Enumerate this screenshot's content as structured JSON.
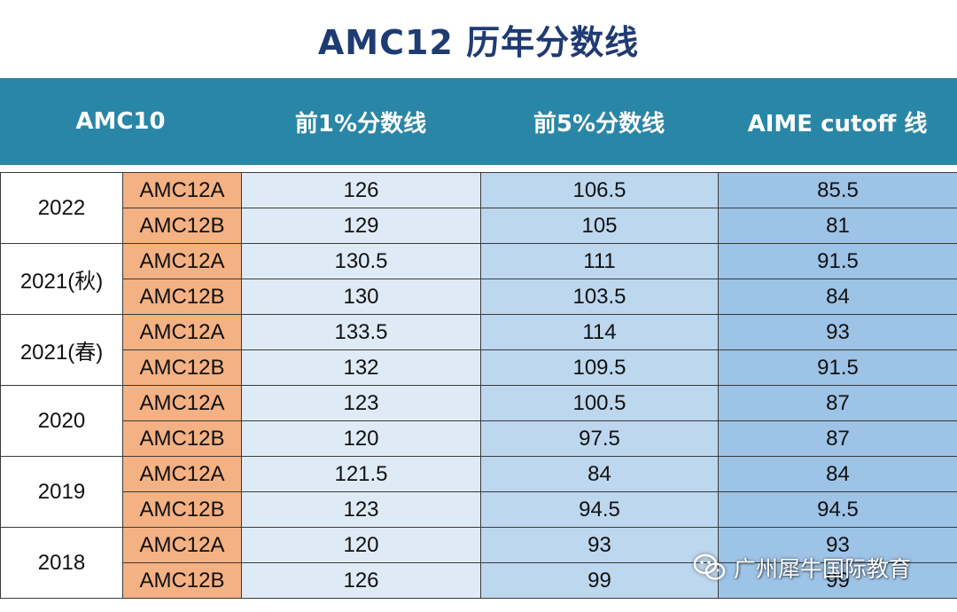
{
  "title": "AMC12 历年分数线",
  "header": {
    "col0": "AMC10",
    "col1": "前1%分数线",
    "col2": "前5%分数线",
    "col3": "AIME cutoff 线"
  },
  "rows": [
    {
      "year": "2022",
      "a": {
        "exam": "AMC12A",
        "top1": "126",
        "top5": "106.5",
        "aime": "85.5"
      },
      "b": {
        "exam": "AMC12B",
        "top1": "129",
        "top5": "105",
        "aime": "81"
      }
    },
    {
      "year": "2021(秋)",
      "a": {
        "exam": "AMC12A",
        "top1": "130.5",
        "top5": "111",
        "aime": "91.5"
      },
      "b": {
        "exam": "AMC12B",
        "top1": "130",
        "top5": "103.5",
        "aime": "84"
      }
    },
    {
      "year": "2021(春)",
      "a": {
        "exam": "AMC12A",
        "top1": "133.5",
        "top5": "114",
        "aime": "93"
      },
      "b": {
        "exam": "AMC12B",
        "top1": "132",
        "top5": "109.5",
        "aime": "91.5"
      }
    },
    {
      "year": "2020",
      "a": {
        "exam": "AMC12A",
        "top1": "123",
        "top5": "100.5",
        "aime": "87"
      },
      "b": {
        "exam": "AMC12B",
        "top1": "120",
        "top5": "97.5",
        "aime": "87"
      }
    },
    {
      "year": "2019",
      "a": {
        "exam": "AMC12A",
        "top1": "121.5",
        "top5": "84",
        "aime": "84"
      },
      "b": {
        "exam": "AMC12B",
        "top1": "123",
        "top5": "94.5",
        "aime": "94.5"
      }
    },
    {
      "year": "2018",
      "a": {
        "exam": "AMC12A",
        "top1": "120",
        "top5": "93",
        "aime": "93"
      },
      "b": {
        "exam": "AMC12B",
        "top1": "126",
        "top5": "99",
        "aime": "99"
      }
    }
  ],
  "watermark": {
    "text": "广州犀牛国际教育",
    "icon": "wechat-icon"
  },
  "colors": {
    "title": "#1f3b73",
    "header_bg": "#2a86a6",
    "exam_bg": "#f4b183",
    "col1_bg": "#deebf7",
    "col2_bg": "#bdd7ee",
    "col3_bg": "#9dc3e6"
  }
}
